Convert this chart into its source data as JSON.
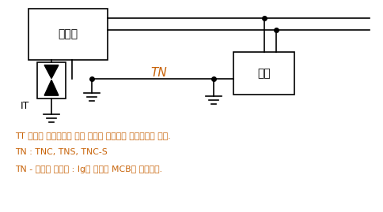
{
  "background_color": "#ffffff",
  "text_color": "#000000",
  "orange_color": "#c8640a",
  "transformer_label": "변압기",
  "load_label": "부하",
  "tn_label": "TN",
  "it_label": "IT",
  "line1_text": "TT 방식은 임피던스가 크고 전류가 작으며로 누전인단를 쓴다.",
  "line2_text": "TN : TNC, TNS, TNC-S",
  "line3_text": "TN - 배선용 차단기 : Ig가 크면로 MCB를 사용한다."
}
